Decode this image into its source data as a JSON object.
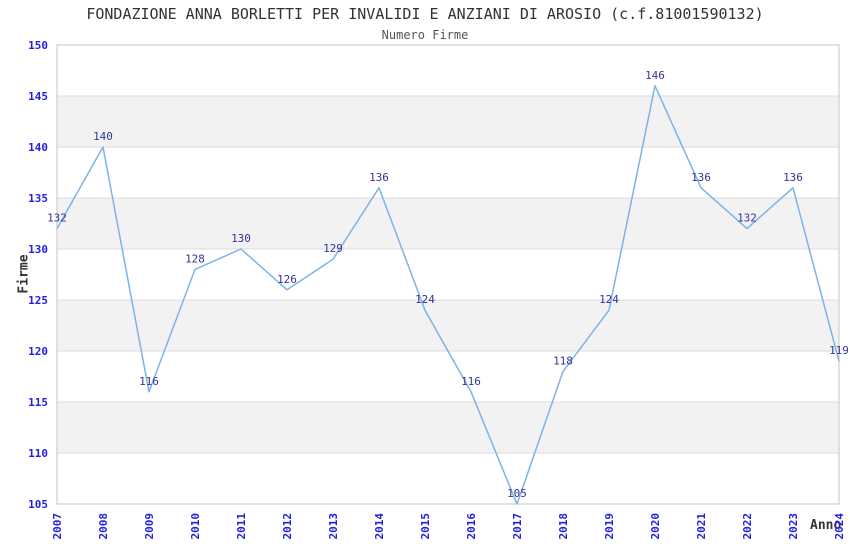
{
  "chart_data": {
    "type": "line",
    "title": "FONDAZIONE ANNA BORLETTI PER INVALIDI E ANZIANI DI AROSIO (c.f.81001590132)",
    "subtitle": "Numero Firme",
    "xlabel": "Anno",
    "ylabel": "Firme",
    "categories": [
      "2007",
      "2008",
      "2009",
      "2010",
      "2011",
      "2012",
      "2013",
      "2014",
      "2015",
      "2016",
      "2017",
      "2018",
      "2019",
      "2020",
      "2021",
      "2022",
      "2023",
      "2024"
    ],
    "series": [
      {
        "name": "Numero Firme",
        "values": [
          132,
          140,
          116,
          128,
          130,
          126,
          129,
          136,
          124,
          116,
          105,
          118,
          124,
          146,
          136,
          132,
          136,
          119
        ]
      }
    ],
    "ylim": [
      105,
      150
    ],
    "ytick_step": 5,
    "point_labels_visible": true,
    "legend": "none",
    "grid": "horizontal-lines-with-alternating-bands",
    "x_tick_rotation_degrees": 90,
    "colors": {
      "line": "#7db3e8",
      "tick_label": "#2222dd",
      "point_label": "#333399",
      "band": "#f2f2f2",
      "grid_line": "#dcdcdc",
      "plot_border": "#c4c4c4",
      "title": "#333333",
      "subtitle": "#555555",
      "axis_title": "#333333",
      "background": "#ffffff"
    }
  }
}
